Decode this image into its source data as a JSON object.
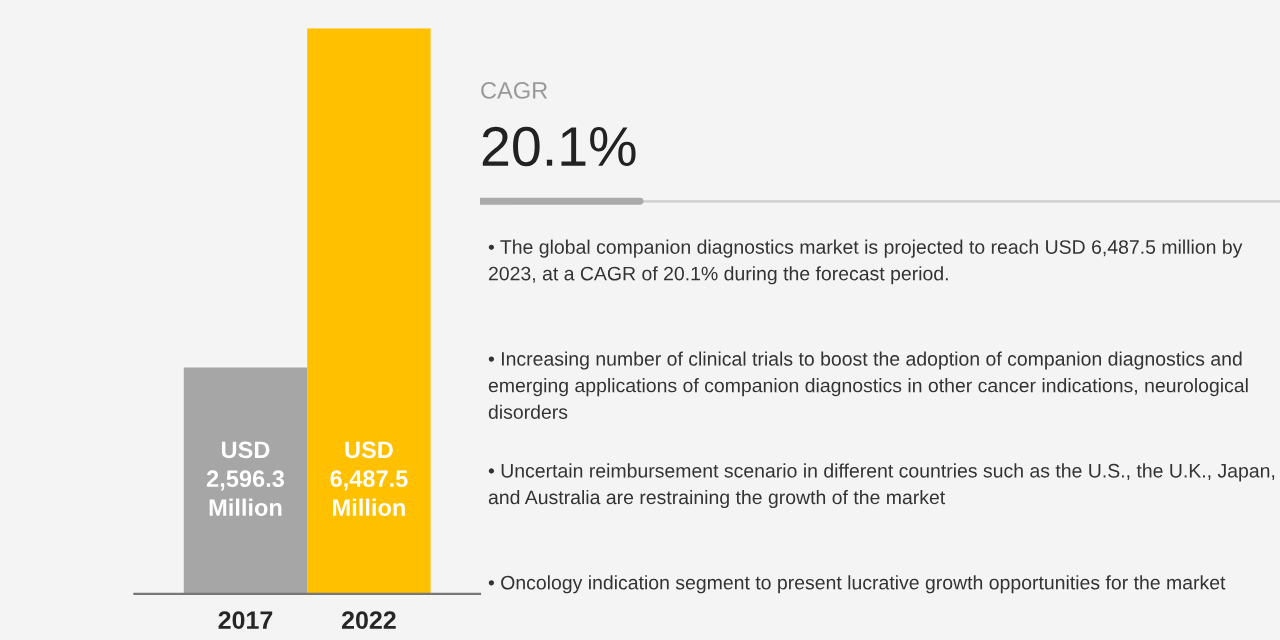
{
  "chart_data": [
    {
      "type": "bar",
      "categories": [
        "2017",
        "2022"
      ],
      "values": [
        2596.3,
        6487.5
      ],
      "colors": [
        "#a6a6a6",
        "#ffc000"
      ],
      "value_labels": [
        "USD\n2,596.3\nMillion",
        "USD\n6,487.5\nMillion"
      ],
      "tick_labels": "x",
      "grid": false,
      "legend": false
    },
    {
      "type": "other",
      "title": "CAGR",
      "subtitle": "20.1%",
      "annotations": [
        "• The global companion diagnostics market is projected to reach USD 6,487.5 million by 2023, at a CAGR of 20.1% during the forecast period.",
        "• Increasing number of clinical trials to boost the adoption of companion diagnostics and emerging applications of companion diagnostics in other cancer indications, neurological disorders",
        "• Uncertain reimbursement scenario in different countries such as the U.S., the U.K., Japan, and Australia are restraining the growth of the market",
        "• Oncology indication segment to present lucrative growth opportunities for the market"
      ]
    }
  ]
}
